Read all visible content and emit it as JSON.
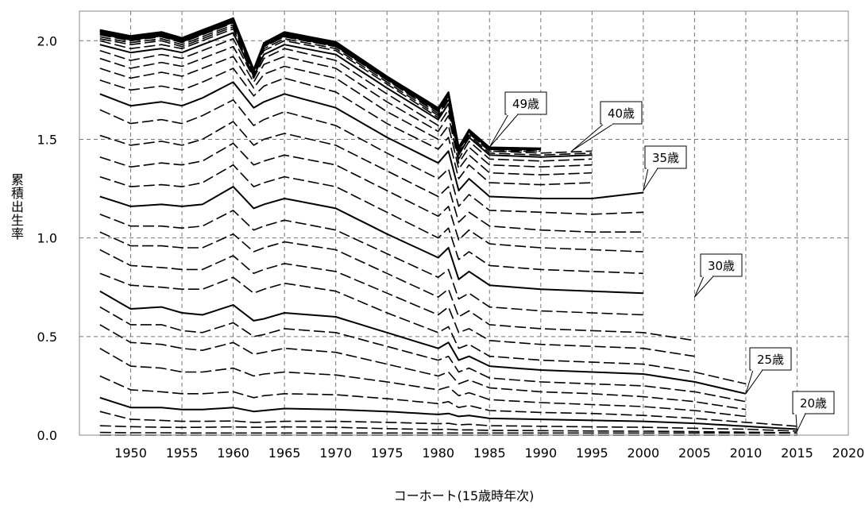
{
  "chart_data": {
    "type": "line",
    "title": "",
    "xlabel": "コーホート(15歳時年次)",
    "ylabel": "累積出生率",
    "xlim": [
      1945,
      2020
    ],
    "ylim": [
      0,
      2.15
    ],
    "grid": true,
    "x_ticks": [
      "1950",
      "1955",
      "1960",
      "1965",
      "1970",
      "1975",
      "1980",
      "1985",
      "1990",
      "1995",
      "2000",
      "2005",
      "2010",
      "2015",
      "2020"
    ],
    "y_ticks": [
      "0.0",
      "0.5",
      "1.0",
      "1.5",
      "2.0"
    ],
    "solid_line_every_5_years_of_age": true,
    "anchor_x": [
      1947,
      1950,
      1953,
      1955,
      1957,
      1960,
      1962,
      1963,
      1965,
      1970,
      1975,
      1980,
      1981,
      1982,
      1983,
      1985,
      1990,
      1995,
      2000,
      2005,
      2010,
      2015
    ],
    "anchor_levels": [
      [
        0.0,
        0.0,
        0.0,
        0.0,
        0.0,
        0.0,
        0.0,
        0.0,
        0.0,
        0.0,
        0.0,
        0.0,
        0.0,
        0.0,
        0.0,
        0.0,
        0.0,
        0.0,
        0.0,
        0.0,
        0.0,
        0.0
      ],
      [
        0.014,
        0.012,
        0.012,
        0.011,
        0.011,
        0.011,
        0.011,
        0.011,
        0.011,
        0.011,
        0.011,
        0.011,
        0.011,
        0.011,
        0.011,
        0.011,
        0.011,
        0.011,
        0.011,
        0.011,
        0.011,
        0.011
      ],
      [
        0.048,
        0.043,
        0.04,
        0.039,
        0.04,
        0.042,
        0.04,
        0.04,
        0.042,
        0.04,
        0.033,
        0.028,
        0.03,
        0.026,
        0.027,
        0.024,
        0.023,
        0.021,
        0.02,
        0.018,
        0.015,
        0.012
      ],
      [
        0.12,
        0.08,
        0.075,
        0.07,
        0.07,
        0.072,
        0.065,
        0.066,
        0.07,
        0.07,
        0.065,
        0.058,
        0.06,
        0.052,
        0.055,
        0.048,
        0.045,
        0.042,
        0.04,
        0.035,
        0.03,
        0.02
      ],
      [
        0.19,
        0.14,
        0.14,
        0.13,
        0.13,
        0.14,
        0.12,
        0.125,
        0.135,
        0.13,
        0.12,
        0.105,
        0.11,
        0.095,
        0.1,
        0.085,
        0.08,
        0.075,
        0.07,
        0.06,
        0.045,
        0.03
      ],
      [
        0.3,
        0.23,
        0.22,
        0.21,
        0.21,
        0.22,
        0.19,
        0.2,
        0.21,
        0.205,
        0.185,
        0.16,
        0.17,
        0.14,
        0.15,
        0.125,
        0.115,
        0.11,
        0.1,
        0.085,
        0.065,
        0.045
      ],
      [
        0.44,
        0.35,
        0.34,
        0.32,
        0.32,
        0.34,
        0.3,
        0.31,
        0.32,
        0.305,
        0.27,
        0.23,
        0.245,
        0.2,
        0.215,
        0.18,
        0.165,
        0.155,
        0.145,
        0.125,
        0.095
      ],
      [
        0.56,
        0.47,
        0.46,
        0.44,
        0.43,
        0.47,
        0.41,
        0.42,
        0.44,
        0.42,
        0.36,
        0.3,
        0.32,
        0.26,
        0.28,
        0.24,
        0.22,
        0.21,
        0.195,
        0.17,
        0.13
      ],
      [
        0.65,
        0.56,
        0.56,
        0.53,
        0.52,
        0.57,
        0.5,
        0.51,
        0.54,
        0.52,
        0.45,
        0.38,
        0.4,
        0.32,
        0.34,
        0.29,
        0.27,
        0.26,
        0.25,
        0.22,
        0.17
      ],
      [
        0.73,
        0.64,
        0.65,
        0.62,
        0.61,
        0.66,
        0.58,
        0.59,
        0.62,
        0.6,
        0.52,
        0.44,
        0.47,
        0.38,
        0.4,
        0.35,
        0.33,
        0.32,
        0.31,
        0.27,
        0.21
      ],
      [
        0.82,
        0.76,
        0.75,
        0.74,
        0.74,
        0.8,
        0.72,
        0.74,
        0.77,
        0.73,
        0.62,
        0.52,
        0.55,
        0.44,
        0.46,
        0.4,
        0.38,
        0.37,
        0.36,
        0.32,
        0.26
      ],
      [
        0.94,
        0.86,
        0.85,
        0.84,
        0.84,
        0.91,
        0.82,
        0.84,
        0.87,
        0.83,
        0.72,
        0.61,
        0.65,
        0.52,
        0.54,
        0.48,
        0.46,
        0.45,
        0.44,
        0.4
      ],
      [
        1.03,
        0.96,
        0.96,
        0.95,
        0.95,
        1.02,
        0.93,
        0.95,
        0.98,
        0.94,
        0.82,
        0.7,
        0.74,
        0.6,
        0.63,
        0.56,
        0.54,
        0.53,
        0.52,
        0.48
      ],
      [
        1.12,
        1.06,
        1.06,
        1.05,
        1.06,
        1.14,
        1.04,
        1.06,
        1.09,
        1.04,
        0.92,
        0.8,
        0.84,
        0.69,
        0.72,
        0.65,
        0.63,
        0.62,
        0.61
      ],
      [
        1.21,
        1.16,
        1.17,
        1.16,
        1.17,
        1.26,
        1.15,
        1.17,
        1.2,
        1.15,
        1.02,
        0.9,
        0.95,
        0.79,
        0.83,
        0.76,
        0.74,
        0.73,
        0.72
      ],
      [
        1.31,
        1.26,
        1.27,
        1.26,
        1.28,
        1.37,
        1.26,
        1.28,
        1.31,
        1.26,
        1.13,
        1.0,
        1.05,
        0.89,
        0.93,
        0.86,
        0.84,
        0.83,
        0.82
      ],
      [
        1.41,
        1.36,
        1.38,
        1.37,
        1.39,
        1.48,
        1.37,
        1.39,
        1.42,
        1.37,
        1.24,
        1.11,
        1.16,
        0.99,
        1.04,
        0.97,
        0.95,
        0.94,
        0.93
      ],
      [
        1.52,
        1.47,
        1.49,
        1.47,
        1.5,
        1.59,
        1.47,
        1.5,
        1.53,
        1.47,
        1.34,
        1.21,
        1.26,
        1.08,
        1.13,
        1.06,
        1.04,
        1.03,
        1.03
      ],
      [
        1.65,
        1.58,
        1.6,
        1.58,
        1.62,
        1.7,
        1.57,
        1.6,
        1.64,
        1.57,
        1.43,
        1.3,
        1.35,
        1.16,
        1.22,
        1.14,
        1.13,
        1.12,
        1.13
      ],
      [
        1.73,
        1.67,
        1.69,
        1.67,
        1.71,
        1.79,
        1.66,
        1.69,
        1.73,
        1.66,
        1.51,
        1.38,
        1.44,
        1.24,
        1.3,
        1.21,
        1.2,
        1.2,
        1.23
      ],
      [
        1.8,
        1.75,
        1.77,
        1.75,
        1.79,
        1.86,
        1.72,
        1.77,
        1.81,
        1.74,
        1.58,
        1.45,
        1.51,
        1.3,
        1.37,
        1.28,
        1.27,
        1.28
      ],
      [
        1.86,
        1.81,
        1.84,
        1.82,
        1.86,
        1.92,
        1.76,
        1.83,
        1.87,
        1.81,
        1.64,
        1.5,
        1.57,
        1.35,
        1.42,
        1.33,
        1.32,
        1.33
      ],
      [
        1.91,
        1.86,
        1.89,
        1.87,
        1.91,
        1.97,
        1.79,
        1.88,
        1.92,
        1.86,
        1.69,
        1.54,
        1.62,
        1.38,
        1.46,
        1.37,
        1.36,
        1.37
      ],
      [
        1.95,
        1.9,
        1.93,
        1.91,
        1.95,
        2.01,
        1.81,
        1.91,
        1.96,
        1.9,
        1.73,
        1.57,
        1.65,
        1.4,
        1.49,
        1.4,
        1.39,
        1.4
      ],
      [
        1.98,
        1.94,
        1.96,
        1.94,
        1.98,
        2.04,
        1.82,
        1.93,
        1.98,
        1.93,
        1.76,
        1.6,
        1.68,
        1.42,
        1.51,
        1.42,
        1.41,
        1.42
      ],
      [
        2.0,
        1.96,
        1.98,
        1.96,
        2.0,
        2.06,
        1.83,
        1.95,
        2.0,
        1.95,
        1.78,
        1.61,
        1.7,
        1.43,
        1.52,
        1.43,
        1.42,
        1.43
      ],
      [
        2.01,
        1.98,
        2.0,
        1.97,
        2.01,
        2.07,
        1.83,
        1.96,
        2.01,
        1.96,
        1.79,
        1.62,
        1.71,
        1.44,
        1.53,
        1.44,
        1.43,
        1.44
      ],
      [
        2.02,
        1.99,
        2.01,
        1.98,
        2.02,
        2.08,
        1.84,
        1.97,
        2.02,
        1.97,
        1.8,
        1.63,
        1.72,
        1.44,
        1.53,
        1.44,
        1.44
      ],
      [
        2.03,
        2.0,
        2.02,
        1.99,
        2.03,
        2.09,
        1.84,
        1.97,
        2.02,
        1.97,
        1.8,
        1.64,
        1.72,
        1.45,
        1.54,
        1.45,
        1.44
      ],
      [
        2.035,
        2.005,
        2.025,
        1.995,
        2.035,
        2.095,
        1.845,
        1.975,
        2.025,
        1.975,
        1.805,
        1.645,
        1.725,
        1.45,
        1.54,
        1.45,
        1.45
      ],
      [
        2.04,
        2.01,
        2.03,
        2.0,
        2.04,
        2.1,
        1.85,
        1.98,
        2.03,
        1.98,
        1.81,
        1.65,
        1.73,
        1.45,
        1.54,
        1.45,
        1.45
      ],
      [
        2.045,
        2.015,
        2.035,
        2.005,
        2.045,
        2.105,
        1.85,
        1.98,
        2.035,
        1.985,
        1.81,
        1.65,
        1.73,
        1.455,
        1.545,
        1.455,
        1.45
      ],
      [
        2.05,
        2.02,
        2.04,
        2.01,
        2.05,
        2.11,
        1.85,
        1.985,
        2.04,
        1.99,
        1.815,
        1.655,
        1.735,
        1.455,
        1.545,
        1.455,
        1.45
      ],
      [
        2.052,
        2.022,
        2.042,
        2.012,
        2.052,
        2.112,
        1.852,
        1.987,
        2.042,
        1.992,
        1.817,
        1.657,
        1.737,
        1.457,
        1.547,
        1.457,
        1.452
      ],
      [
        2.054,
        2.024,
        2.044,
        2.014,
        2.054,
        2.114,
        1.854,
        1.989,
        2.044,
        1.994,
        1.819,
        1.659,
        1.739,
        1.459,
        1.549,
        1.459,
        1.454
      ]
    ],
    "callouts": [
      {
        "label": "49歳",
        "x": 1985,
        "y": 1.46
      },
      {
        "label": "40歳",
        "x": 1993,
        "y": 1.44
      },
      {
        "label": "35歳",
        "x": 2000,
        "y": 1.24
      },
      {
        "label": "30歳",
        "x": 2005,
        "y": 0.7
      },
      {
        "label": "25歳",
        "x": 2010,
        "y": 0.21
      },
      {
        "label": "20歳",
        "x": 2015,
        "y": 0.02
      }
    ]
  }
}
